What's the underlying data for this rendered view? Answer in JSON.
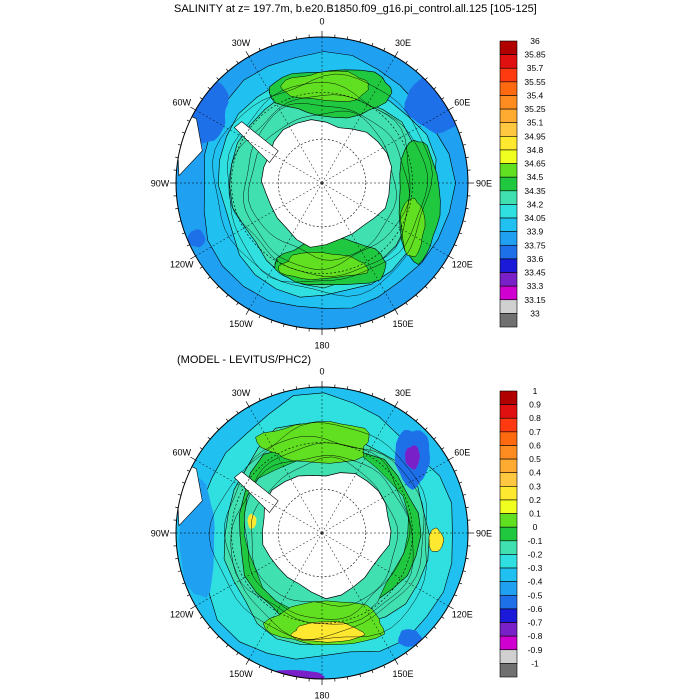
{
  "panels": [
    {
      "title": "SALINITY at z= 197.7m, b.e20.B1850.f09_g16.pi_control.all.125 [105-125]",
      "lon_labels": [
        "0",
        "30E",
        "60E",
        "90E",
        "120E",
        "150E",
        "180",
        "150W",
        "120W",
        "90W",
        "60W",
        "30W"
      ],
      "colorbar_labels": [
        "36",
        "35.85",
        "35.7",
        "35.55",
        "35.4",
        "35.25",
        "35.1",
        "34.95",
        "34.8",
        "34.65",
        "34.5",
        "34.35",
        "34.2",
        "34.05",
        "33.9",
        "33.75",
        "33.6",
        "33.45",
        "33.3",
        "33.15",
        "33"
      ],
      "colorbar_colors": [
        "#b00000",
        "#e01010",
        "#ff3a10",
        "#ff6a10",
        "#ff8c20",
        "#ffaa30",
        "#ffc840",
        "#ffe830",
        "#f0ff20",
        "#60e020",
        "#20c840",
        "#40e0b0",
        "#30e0e0",
        "#20c0f0",
        "#20a0f0",
        "#1e70e8",
        "#1a1ad8",
        "#7a20c8",
        "#d000d0",
        "#d0d0d0",
        "#707070"
      ]
    },
    {
      "title": "(MODEL - LEVITUS/PHC2)",
      "lon_labels": [
        "0",
        "30E",
        "60E",
        "90E",
        "120E",
        "150E",
        "180",
        "150W",
        "120W",
        "90W",
        "60W",
        "30W"
      ],
      "colorbar_labels": [
        "1",
        "0.9",
        "0.8",
        "0.7",
        "0.6",
        "0.5",
        "0.4",
        "0.3",
        "0.2",
        "0.1",
        "0",
        "-0.1",
        "-0.2",
        "-0.3",
        "-0.4",
        "-0.5",
        "-0.6",
        "-0.7",
        "-0.8",
        "-0.9",
        "-1"
      ],
      "colorbar_colors": [
        "#b00000",
        "#e01010",
        "#ff3a10",
        "#ff6a10",
        "#ff8c20",
        "#ffaa30",
        "#ffc840",
        "#ffe830",
        "#f0ff20",
        "#60e020",
        "#20c840",
        "#40e0b0",
        "#30e0e0",
        "#20c0f0",
        "#20a0f0",
        "#1e70e8",
        "#1a1ad8",
        "#7a20c8",
        "#d000d0",
        "#d0d0d0",
        "#707070"
      ]
    }
  ]
}
